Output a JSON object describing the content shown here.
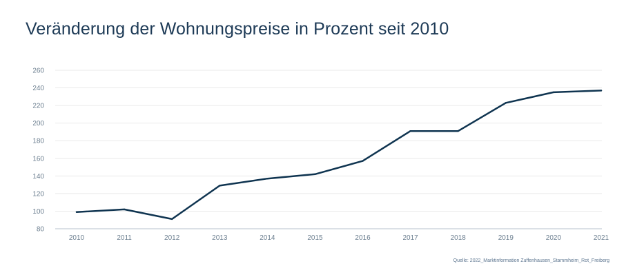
{
  "chart_data": {
    "type": "line",
    "title": "Veränderung der Wohnungspreise in Prozent seit 2010",
    "x": [
      "2010",
      "2011",
      "2012",
      "2013",
      "2014",
      "2015",
      "2016",
      "2017",
      "2018",
      "2019",
      "2020",
      "2021"
    ],
    "series": [
      {
        "values": [
          99,
          102,
          91,
          129,
          137,
          142,
          157,
          191,
          191,
          223,
          235,
          237
        ]
      }
    ],
    "yticks": [
      80,
      100,
      120,
      140,
      160,
      180,
      200,
      220,
      240,
      260
    ],
    "ylim": [
      80,
      260
    ],
    "xlabel": "",
    "ylabel": "",
    "grid": true,
    "source": "Quelle: 2022_Marktinformation Zuffenhausen_Stammheim_Rot_Freiberg",
    "colors": {
      "line": "#0f3450",
      "grid": "#e9e9e9",
      "axis": "#b7c2cc"
    }
  }
}
